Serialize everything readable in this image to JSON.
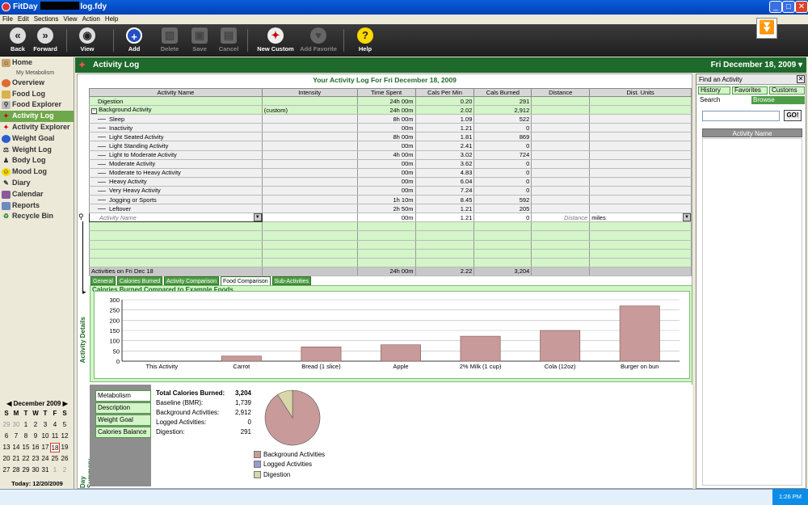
{
  "window": {
    "app": "FitDay",
    "title_suffix": "log.fdy"
  },
  "menu": [
    "File",
    "Edit",
    "Sections",
    "View",
    "Action",
    "Help"
  ],
  "toolbar": {
    "back": "Back",
    "forward": "Forward",
    "view": "View",
    "add": "Add",
    "delete": "Delete",
    "save": "Save",
    "cancel": "Cancel",
    "new_custom": "New Custom",
    "add_favorite": "Add Favorite",
    "help": "Help"
  },
  "sidebar": {
    "home": "Home",
    "my_metabolism": "My Metabolism",
    "items": [
      "Overview",
      "Food Log",
      "Food Explorer",
      "Activity Log",
      "Activity Explorer",
      "Weight Goal",
      "Weight Log",
      "Body Log",
      "Mood Log",
      "Diary",
      "Calendar",
      "Reports",
      "Recycle Bin"
    ]
  },
  "header": {
    "title": "Activity Log",
    "date": "Fri December 18, 2009 ▾"
  },
  "log": {
    "title": "Your Activity Log For Fri December 18, 2009",
    "columns": [
      "Activity Name",
      "Intensity",
      "Time Spent",
      "Cals Per Min",
      "Cals Burned",
      "Distance",
      "Dist. Units"
    ],
    "rows": [
      {
        "name": "Digestion",
        "intensity": "",
        "time": "24h 00m",
        "cpm": "0.20",
        "burned": "291"
      },
      {
        "name": "Background Activity",
        "intensity": "(custom)",
        "time": "24h 00m",
        "cpm": "2.02",
        "burned": "2,912"
      },
      {
        "name": "Sleep",
        "intensity": "",
        "time": "8h 00m",
        "cpm": "1.09",
        "burned": "522"
      },
      {
        "name": "Inactivity",
        "intensity": "",
        "time": "00m",
        "cpm": "1.21",
        "burned": "0"
      },
      {
        "name": "Light Seated Activity",
        "intensity": "",
        "time": "8h 00m",
        "cpm": "1.81",
        "burned": "869"
      },
      {
        "name": "Light Standing Activity",
        "intensity": "",
        "time": "00m",
        "cpm": "2.41",
        "burned": "0"
      },
      {
        "name": "Light to Moderate Activity",
        "intensity": "",
        "time": "4h 00m",
        "cpm": "3.02",
        "burned": "724"
      },
      {
        "name": "Moderate Activity",
        "intensity": "",
        "time": "00m",
        "cpm": "3.62",
        "burned": "0"
      },
      {
        "name": "Moderate to Heavy Activity",
        "intensity": "",
        "time": "00m",
        "cpm": "4.83",
        "burned": "0"
      },
      {
        "name": "Heavy Activity",
        "intensity": "",
        "time": "00m",
        "cpm": "6.04",
        "burned": "0"
      },
      {
        "name": "Very Heavy Activity",
        "intensity": "",
        "time": "00m",
        "cpm": "7.24",
        "burned": "0"
      },
      {
        "name": "Jogging or Sports",
        "intensity": "",
        "time": "1h 10m",
        "cpm": "8.45",
        "burned": "592"
      },
      {
        "name": "Leftover",
        "intensity": "",
        "time": "2h 50m",
        "cpm": "1.21",
        "burned": "205"
      }
    ],
    "input": {
      "name_placeholder": "Activity Name",
      "time": "00m",
      "cpm": "1.21",
      "burned": "0",
      "distance_placeholder": "Distance",
      "units": "miles"
    },
    "total": {
      "label": "Activities on Fri Dec 18",
      "time": "24h 00m",
      "cpm": "2.22",
      "burned": "3,204"
    }
  },
  "tabs": [
    "General",
    "Calories Burned",
    "Activity Comparison",
    "Food Comparison",
    "Sub-Activities"
  ],
  "activity_details_label": "Activity Details",
  "day_summary_label": "Day Summary",
  "chart_data": {
    "type": "bar",
    "title": "Calories Burned Compared to Example Foods",
    "categories": [
      "This Activity",
      "Carrot",
      "Bread (1 slice)",
      "Apple",
      "2% Milk (1 cup)",
      "Cola (12oz)",
      "Burger on bun"
    ],
    "values": [
      0,
      25,
      70,
      80,
      122,
      150,
      270
    ],
    "ylim": [
      0,
      300
    ],
    "yticks": [
      0,
      50,
      100,
      150,
      200,
      250,
      300
    ],
    "bar_color": "#c99a9a",
    "grid": true
  },
  "summary": {
    "tabs": [
      "Metabolism",
      "Description",
      "Weight Goal",
      "Calories Balance"
    ],
    "stats": [
      {
        "label": "Total Calories Burned:",
        "value": "3,204"
      },
      {
        "label": "Baseline (BMR):",
        "value": "1,739"
      },
      {
        "label": "Background Activities:",
        "value": "2,912"
      },
      {
        "label": "Logged Activities:",
        "value": "0"
      },
      {
        "label": "Digestion:",
        "value": "291"
      }
    ],
    "pie": {
      "slices": [
        {
          "name": "Background Activities",
          "value": 2912,
          "color": "#c99a9a"
        },
        {
          "name": "Logged Activities",
          "value": 0,
          "color": "#9a9ad0"
        },
        {
          "name": "Digestion",
          "value": 291,
          "color": "#d7d7a8"
        }
      ]
    }
  },
  "calendar": {
    "month": "December 2009",
    "days_header": [
      "S",
      "M",
      "T",
      "W",
      "T",
      "F",
      "S"
    ],
    "cells": [
      "29",
      "30",
      "1",
      "2",
      "3",
      "4",
      "5",
      "6",
      "7",
      "8",
      "9",
      "10",
      "11",
      "12",
      "13",
      "14",
      "15",
      "16",
      "17",
      "18",
      "19",
      "20",
      "21",
      "22",
      "23",
      "24",
      "25",
      "26",
      "27",
      "28",
      "29",
      "30",
      "31",
      "1",
      "2"
    ],
    "today": "Today: 12/20/2009"
  },
  "right_panel": {
    "title": "Find an Activity",
    "tabs": [
      "History",
      "Favorites",
      "Customs",
      "Search",
      "Browse"
    ],
    "go": "GO!",
    "column": "Activity Name"
  },
  "clock": "1:26 PM"
}
